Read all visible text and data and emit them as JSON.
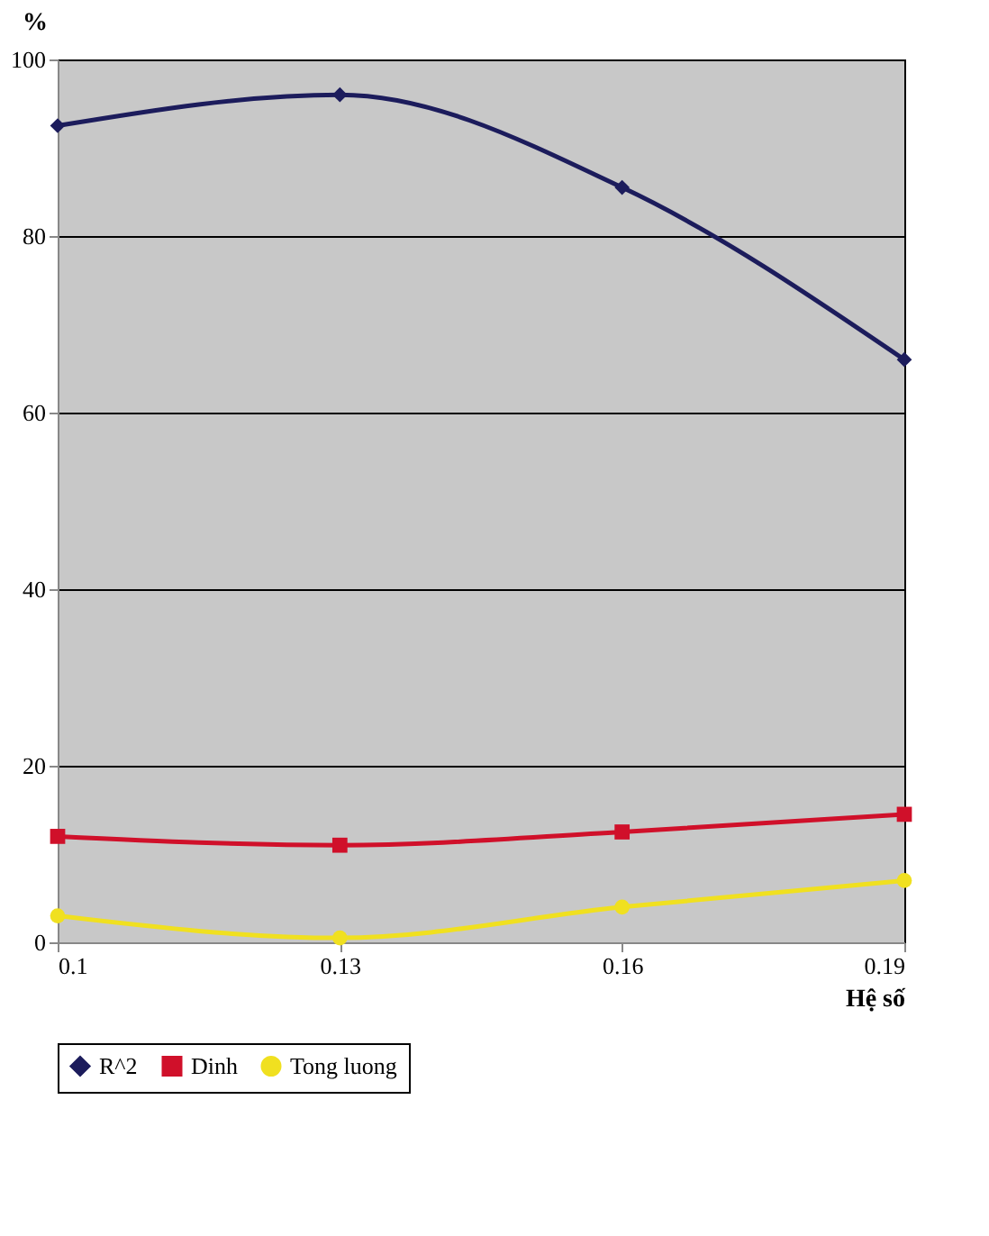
{
  "chart_data": {
    "type": "line",
    "xlabel": "Hệ số",
    "ylabel": "%",
    "x": [
      0.1,
      0.13,
      0.16,
      0.19
    ],
    "xlim": [
      0.1,
      0.19
    ],
    "xticks": [
      0.1,
      0.13,
      0.16,
      0.19
    ],
    "ylim": [
      0,
      100
    ],
    "yticks": [
      0,
      20,
      40,
      60,
      80,
      100
    ],
    "grid": "y",
    "legend": "bottom",
    "line_style": "solid",
    "series": [
      {
        "name": "R^2",
        "color": "#1c1c5c",
        "marker": "diamond",
        "values": [
          92.5,
          96,
          85.5,
          66
        ]
      },
      {
        "name": "Dinh",
        "color": "#d0102a",
        "marker": "square",
        "values": [
          12,
          11,
          12.5,
          14.5
        ]
      },
      {
        "name": "Tong luong",
        "color": "#f0e020",
        "marker": "circle",
        "values": [
          3,
          0.5,
          4,
          7
        ]
      }
    ]
  }
}
